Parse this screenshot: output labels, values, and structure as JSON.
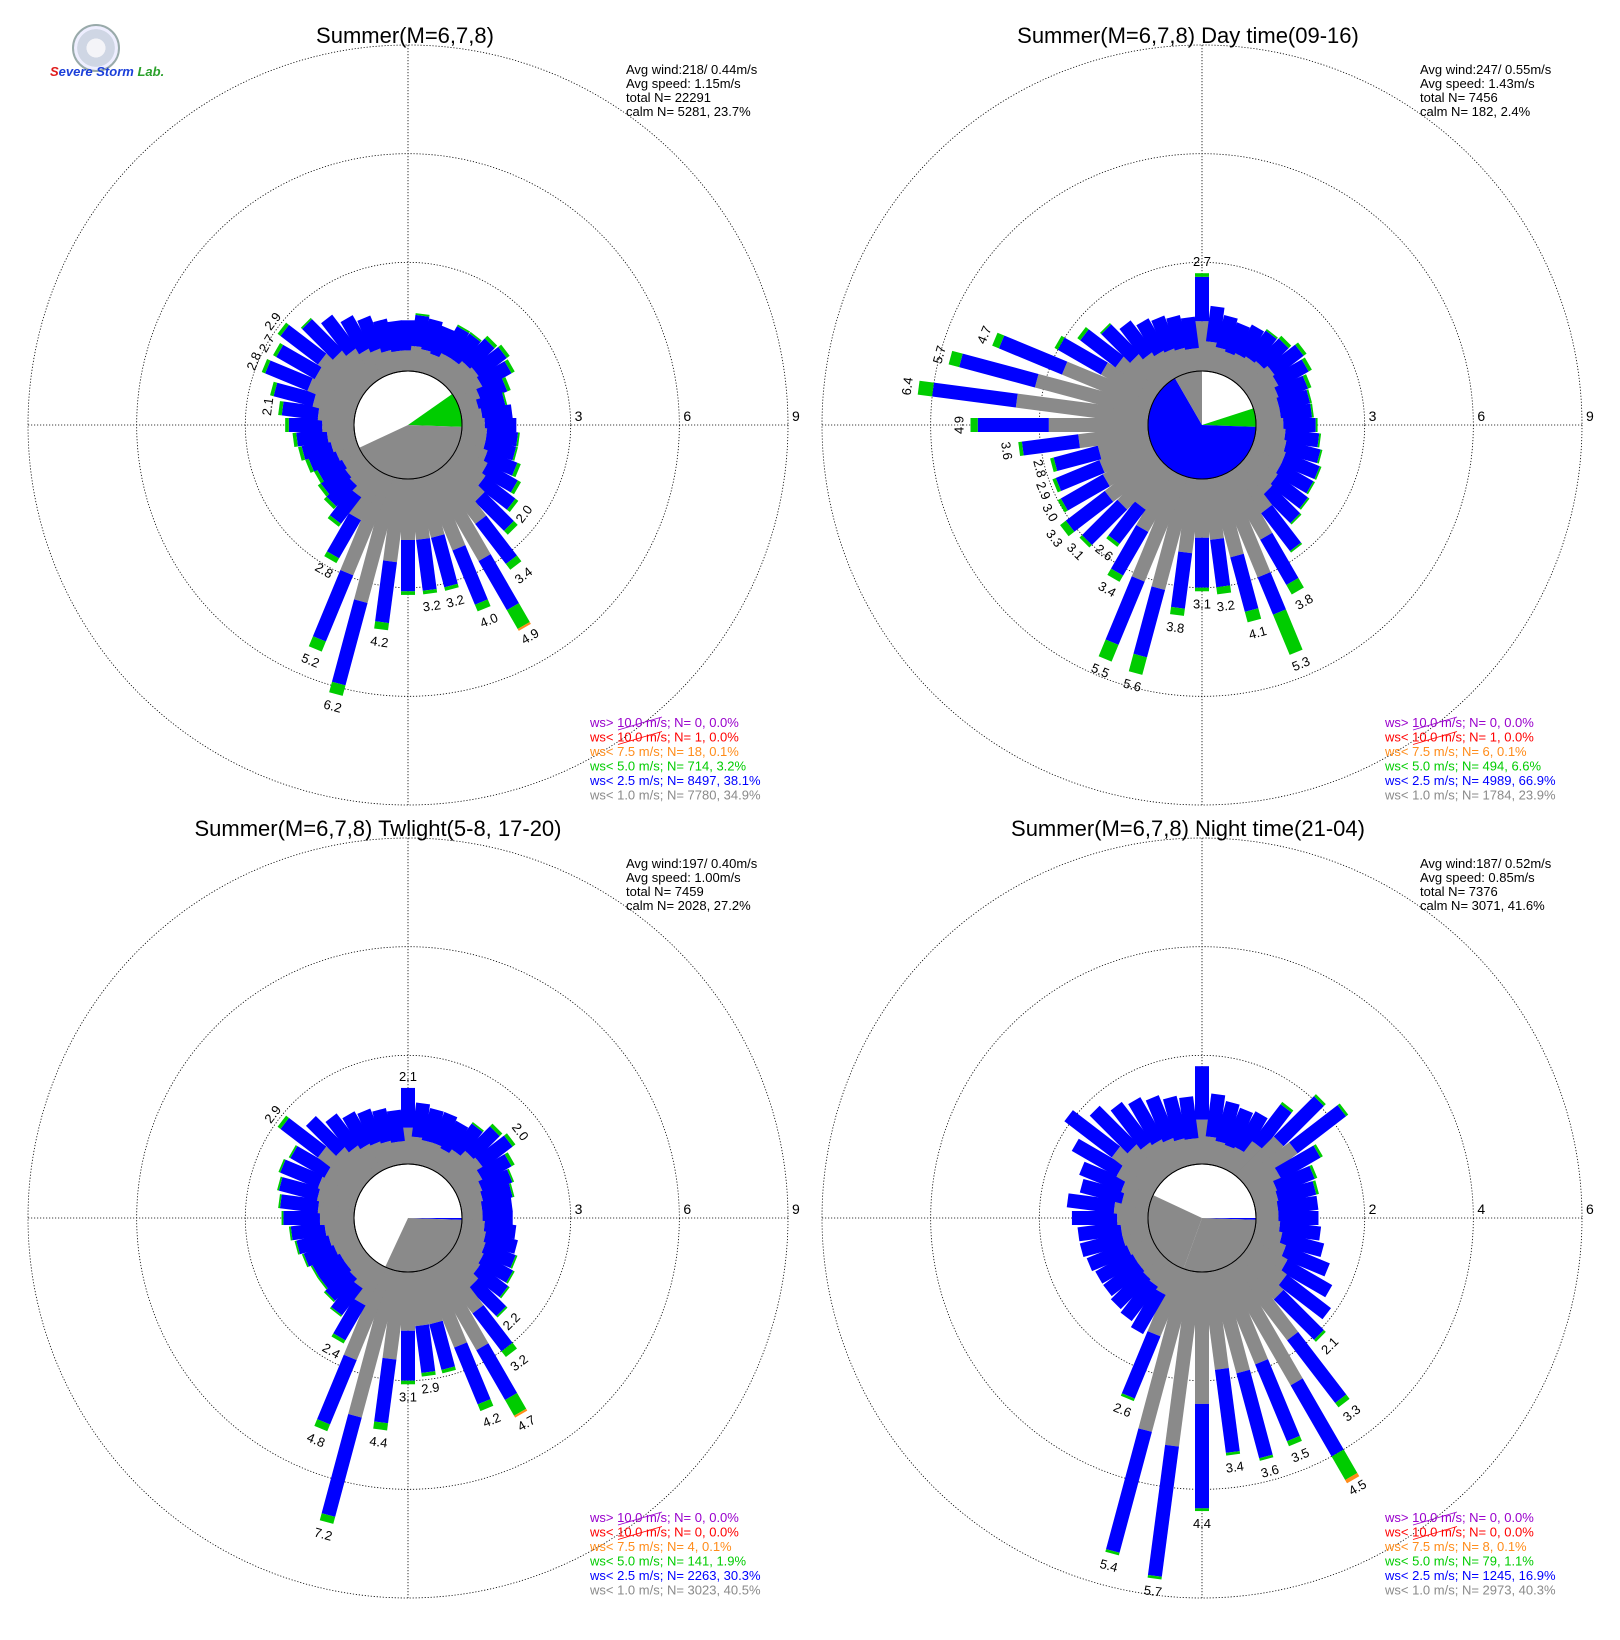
{
  "logo": {
    "text": "Severe Storm Lab."
  },
  "legend_colors": [
    "#8a8a8a",
    "#0000ff",
    "#00cc00",
    "#ff8c1a",
    "#ff0000",
    "#9900cc"
  ],
  "legend_labels": [
    "ws<  1.0 m/s; N=",
    "ws<  2.5 m/s; N=",
    "ws<  5.0 m/s; N=",
    "ws<  7.5 m/s; N=",
    "ws< 10.0 m/s; N=",
    "ws> 10.0 m/s; N="
  ],
  "chart_data": [
    {
      "type": "polar-bar",
      "title": "Summer(M=6,7,8)",
      "ring_labels": [
        "3",
        "6",
        "9"
      ],
      "r_max": 9,
      "stats": {
        "avg_wind": "Avg wind:218/ 0.44m/s",
        "avg_speed": "Avg speed: 1.15m/s",
        "total": "total N=       22291",
        "calm": "calm N=   5281,  23.7%"
      },
      "calm_pie": [
        {
          "deg": 55,
          "color": "#0000ff"
        },
        {
          "deg": 92,
          "color": "#00cc00"
        },
        {
          "deg": 245,
          "color": "#8a8a8a"
        }
      ],
      "bins": [
        [
          1.4,
          0
        ],
        [
          1.6,
          0.05
        ],
        [
          1.5,
          0
        ],
        [
          1.4,
          0
        ],
        [
          1.6,
          0.05
        ],
        [
          1.6,
          0.05
        ],
        [
          1.8,
          0.1
        ],
        [
          1.9,
          0.1
        ],
        [
          1.8,
          0.1
        ],
        [
          1.5,
          0.1
        ],
        [
          1.3,
          0.05
        ],
        [
          1.4,
          0
        ],
        [
          1.5,
          0
        ],
        [
          1.6,
          0.05
        ],
        [
          1.6,
          0.05
        ],
        [
          1.8,
          0.1
        ],
        [
          2.0,
          0.1
        ],
        [
          2.2,
          0.1
        ],
        [
          2.6,
          0.15
        ],
        [
          3.4,
          0.2
        ],
        [
          4.9,
          0.6
        ],
        [
          4.0,
          0.2
        ],
        [
          3.2,
          0.1
        ],
        [
          3.2,
          0.1
        ],
        [
          3.2,
          0.1
        ],
        [
          4.2,
          0.2
        ],
        [
          6.2,
          0.3
        ],
        [
          5.2,
          0.3
        ],
        [
          2.8,
          0.15
        ],
        [
          1.9,
          0.1
        ],
        [
          1.6,
          0.1
        ],
        [
          1.5,
          0.1
        ],
        [
          1.4,
          0.1
        ],
        [
          1.5,
          0.1
        ],
        [
          1.6,
          0.1
        ],
        [
          1.7,
          0.1
        ],
        [
          1.9,
          0.1
        ],
        [
          2.1,
          0.1
        ],
        [
          2.4,
          0.1
        ],
        [
          2.8,
          0.1
        ],
        [
          2.7,
          0.1
        ],
        [
          2.9,
          0.1
        ],
        [
          2.5,
          0.05
        ],
        [
          2.2,
          0
        ],
        [
          1.9,
          0
        ],
        [
          1.7,
          0
        ],
        [
          1.5,
          0
        ],
        [
          1.4,
          0
        ]
      ],
      "bar_labels": [
        {
          "i": 17,
          "t": "2.0"
        },
        {
          "i": 19,
          "t": "3.4"
        },
        {
          "i": 20,
          "t": "4.9"
        },
        {
          "i": 21,
          "t": "4.0"
        },
        {
          "i": 22,
          "t": "3.2"
        },
        {
          "i": 23,
          "t": "3.2"
        },
        {
          "i": 25,
          "t": "4.2"
        },
        {
          "i": 26,
          "t": "6.2"
        },
        {
          "i": 27,
          "t": "5.2"
        },
        {
          "i": 28,
          "t": "2.8"
        },
        {
          "i": 37,
          "t": "2.1"
        },
        {
          "i": 39,
          "t": "2.8"
        },
        {
          "i": 40,
          "t": "2.7"
        },
        {
          "i": 41,
          "t": "2.9"
        }
      ],
      "legend_values": [
        "7780, 34.9%",
        "8497, 38.1%",
        "714,  3.2%",
        "18,  0.1%",
        "1,  0.0%",
        "0,  0.0%"
      ]
    },
    {
      "type": "polar-bar",
      "title": "Summer(M=6,7,8) Day time(09-16)",
      "ring_labels": [
        "3",
        "6",
        "9"
      ],
      "r_max": 9,
      "stats": {
        "avg_wind": "Avg wind:247/ 0.55m/s",
        "avg_speed": "Avg speed: 1.43m/s",
        "total": "total N=        7456",
        "calm": "calm N=    182,   2.4%"
      },
      "calm_pie": [
        {
          "deg": 72,
          "color": "#0000ff"
        },
        {
          "deg": 92,
          "color": "#00cc00"
        },
        {
          "deg": 330,
          "color": "#0000ff"
        },
        {
          "deg": 360,
          "color": "#8a8a8a"
        }
      ],
      "bins": [
        [
          2.7,
          0.1
        ],
        [
          1.8,
          0
        ],
        [
          1.6,
          0
        ],
        [
          1.5,
          0
        ],
        [
          1.6,
          0
        ],
        [
          1.7,
          0.05
        ],
        [
          1.8,
          0.1
        ],
        [
          2.0,
          0.1
        ],
        [
          1.9,
          0.1
        ],
        [
          1.7,
          0.1
        ],
        [
          1.6,
          0.05
        ],
        [
          1.6,
          0.05
        ],
        [
          1.7,
          0.05
        ],
        [
          1.8,
          0.05
        ],
        [
          1.9,
          0.05
        ],
        [
          2.0,
          0.05
        ],
        [
          2.0,
          0.05
        ],
        [
          2.1,
          0.05
        ],
        [
          2.2,
          0.05
        ],
        [
          2.8,
          0.05
        ],
        [
          3.8,
          0.3
        ],
        [
          5.3,
          1.2
        ],
        [
          4.1,
          0.3
        ],
        [
          3.2,
          0.2
        ],
        [
          3.1,
          0.1
        ],
        [
          3.8,
          0.2
        ],
        [
          5.6,
          0.5
        ],
        [
          5.5,
          0.5
        ],
        [
          3.4,
          0.2
        ],
        [
          2.6,
          0.1
        ],
        [
          3.1,
          0.1
        ],
        [
          3.3,
          0.2
        ],
        [
          3.0,
          0.1
        ],
        [
          2.9,
          0.1
        ],
        [
          2.8,
          0.1
        ],
        [
          3.6,
          0.1
        ],
        [
          4.9,
          0.2
        ],
        [
          6.4,
          0.4
        ],
        [
          5.7,
          0.3
        ],
        [
          4.7,
          0.2
        ],
        [
          3.1,
          0.1
        ],
        [
          2.7,
          0.1
        ],
        [
          2.3,
          0.05
        ],
        [
          2.0,
          0
        ],
        [
          1.8,
          0
        ],
        [
          1.7,
          0
        ],
        [
          1.6,
          0
        ],
        [
          1.5,
          0
        ]
      ],
      "bar_labels": [
        {
          "i": 0,
          "t": "2.7"
        },
        {
          "i": 20,
          "t": "3.8"
        },
        {
          "i": 21,
          "t": "5.3"
        },
        {
          "i": 22,
          "t": "4.1"
        },
        {
          "i": 23,
          "t": "3.2"
        },
        {
          "i": 24,
          "t": "3.1"
        },
        {
          "i": 25,
          "t": "3.8"
        },
        {
          "i": 26,
          "t": "5.6"
        },
        {
          "i": 27,
          "t": "5.5"
        },
        {
          "i": 28,
          "t": "3.4"
        },
        {
          "i": 29,
          "t": "2.6"
        },
        {
          "i": 30,
          "t": "3.1"
        },
        {
          "i": 31,
          "t": "3.3"
        },
        {
          "i": 32,
          "t": "3.0"
        },
        {
          "i": 33,
          "t": "2.9"
        },
        {
          "i": 34,
          "t": "2.8"
        },
        {
          "i": 35,
          "t": "3.6"
        },
        {
          "i": 36,
          "t": "4.9"
        },
        {
          "i": 37,
          "t": "6.4"
        },
        {
          "i": 38,
          "t": "5.7"
        },
        {
          "i": 39,
          "t": "4.7"
        }
      ],
      "legend_values": [
        "1784, 23.9%",
        "4989, 66.9%",
        "494,  6.6%",
        "6,  0.1%",
        "1,  0.0%",
        "0,  0.0%"
      ]
    },
    {
      "type": "polar-bar",
      "title": "Summer(M=6,7,8) Twlight(5-8, 17-20)",
      "ring_labels": [
        "3",
        "6",
        "9"
      ],
      "r_max": 9,
      "stats": {
        "avg_wind": "Avg wind:197/ 0.40m/s",
        "avg_speed": "Avg speed: 1.00m/s",
        "total": "total N=        7459",
        "calm": "calm N=   2028,  27.2%"
      },
      "calm_pie": [
        {
          "deg": 90,
          "color": "#00cc00"
        },
        {
          "deg": 92,
          "color": "#0000ff"
        },
        {
          "deg": 205,
          "color": "#8a8a8a"
        }
      ],
      "bins": [
        [
          2.1,
          0
        ],
        [
          1.7,
          0
        ],
        [
          1.6,
          0
        ],
        [
          1.6,
          0
        ],
        [
          1.5,
          0
        ],
        [
          1.7,
          0.05
        ],
        [
          2.0,
          0.1
        ],
        [
          2.1,
          0.1
        ],
        [
          1.8,
          0.1
        ],
        [
          1.6,
          0.05
        ],
        [
          1.5,
          0.05
        ],
        [
          1.4,
          0
        ],
        [
          1.4,
          0
        ],
        [
          1.5,
          0
        ],
        [
          1.6,
          0
        ],
        [
          1.7,
          0.05
        ],
        [
          1.8,
          0.05
        ],
        [
          1.9,
          0.05
        ],
        [
          2.2,
          0.05
        ],
        [
          3.2,
          0.2
        ],
        [
          4.7,
          0.5
        ],
        [
          4.2,
          0.2
        ],
        [
          2.9,
          0.1
        ],
        [
          2.9,
          0.1
        ],
        [
          3.1,
          0.1
        ],
        [
          4.4,
          0.2
        ],
        [
          7.2,
          0.2
        ],
        [
          4.8,
          0.2
        ],
        [
          2.4,
          0.1
        ],
        [
          1.8,
          0.05
        ],
        [
          1.6,
          0.05
        ],
        [
          1.5,
          0.05
        ],
        [
          1.5,
          0.05
        ],
        [
          1.6,
          0.05
        ],
        [
          1.7,
          0.05
        ],
        [
          1.8,
          0.05
        ],
        [
          2.0,
          0.05
        ],
        [
          2.1,
          0.05
        ],
        [
          2.2,
          0.05
        ],
        [
          2.3,
          0.05
        ],
        [
          2.2,
          0.05
        ],
        [
          2.9,
          0.1
        ],
        [
          2.3,
          0
        ],
        [
          2.0,
          0
        ],
        [
          1.8,
          0
        ],
        [
          1.7,
          0
        ],
        [
          1.6,
          0
        ],
        [
          1.5,
          0
        ]
      ],
      "bar_labels": [
        {
          "i": 0,
          "t": "2.1"
        },
        {
          "i": 7,
          "t": "2.0"
        },
        {
          "i": 18,
          "t": "2.2"
        },
        {
          "i": 19,
          "t": "3.2"
        },
        {
          "i": 20,
          "t": "4.7"
        },
        {
          "i": 21,
          "t": "4.2"
        },
        {
          "i": 23,
          "t": "2.9"
        },
        {
          "i": 24,
          "t": "3.1"
        },
        {
          "i": 25,
          "t": "4.4"
        },
        {
          "i": 26,
          "t": "7.2"
        },
        {
          "i": 27,
          "t": "4.8"
        },
        {
          "i": 28,
          "t": "2.4"
        },
        {
          "i": 41,
          "t": "2.9"
        }
      ],
      "legend_values": [
        "3023, 40.5%",
        "2263, 30.3%",
        "141,  1.9%",
        "4,  0.1%",
        "0,  0.0%",
        "0,  0.0%"
      ]
    },
    {
      "type": "polar-bar",
      "title": "Summer(M=6,7,8) Night time(21-04)",
      "ring_labels": [
        "2",
        "4",
        "6"
      ],
      "r_max": 6,
      "stats": {
        "avg_wind": "Avg wind:187/ 0.52m/s",
        "avg_speed": "Avg speed: 0.85m/s",
        "total": "total N=        7376",
        "calm": "calm N=   3071,  41.6%"
      },
      "calm_pie": [
        {
          "deg": 90,
          "color": "#00cc00"
        },
        {
          "deg": 92,
          "color": "#0000ff"
        },
        {
          "deg": 200,
          "color": "#8a8a8a"
        },
        {
          "deg": 295,
          "color": "#8a8a8a"
        }
      ],
      "bins": [
        [
          1.8,
          0
        ],
        [
          1.3,
          0
        ],
        [
          1.2,
          0
        ],
        [
          1.15,
          0
        ],
        [
          1.2,
          0
        ],
        [
          1.6,
          0.05
        ],
        [
          2.1,
          0.05
        ],
        [
          2.3,
          0.05
        ],
        [
          1.5,
          0.05
        ],
        [
          1.25,
          0.05
        ],
        [
          1.2,
          0.05
        ],
        [
          1.15,
          0
        ],
        [
          1.15,
          0
        ],
        [
          1.2,
          0
        ],
        [
          1.3,
          0
        ],
        [
          1.5,
          0
        ],
        [
          1.7,
          0
        ],
        [
          1.9,
          0
        ],
        [
          2.1,
          0.05
        ],
        [
          3.3,
          0.1
        ],
        [
          4.5,
          0.5
        ],
        [
          3.5,
          0.1
        ],
        [
          3.6,
          0.05
        ],
        [
          3.4,
          0.05
        ],
        [
          4.4,
          0.05
        ],
        [
          5.7,
          0.05
        ],
        [
          5.4,
          0.05
        ],
        [
          2.6,
          0.05
        ],
        [
          1.4,
          0
        ],
        [
          1.3,
          0
        ],
        [
          1.25,
          0
        ],
        [
          1.2,
          0
        ],
        [
          1.2,
          0
        ],
        [
          1.25,
          0
        ],
        [
          1.3,
          0
        ],
        [
          1.3,
          0
        ],
        [
          1.4,
          0
        ],
        [
          1.5,
          0
        ],
        [
          1.3,
          0
        ],
        [
          1.4,
          0
        ],
        [
          1.7,
          0
        ],
        [
          2.1,
          0
        ],
        [
          1.8,
          0
        ],
        [
          1.6,
          0
        ],
        [
          1.5,
          0
        ],
        [
          1.4,
          0
        ],
        [
          1.3,
          0
        ],
        [
          1.25,
          0
        ]
      ],
      "bar_labels": [
        {
          "i": 18,
          "t": "2.1"
        },
        {
          "i": 19,
          "t": "3.3"
        },
        {
          "i": 20,
          "t": "4.5"
        },
        {
          "i": 21,
          "t": "3.5"
        },
        {
          "i": 22,
          "t": "3.6"
        },
        {
          "i": 23,
          "t": "3.4"
        },
        {
          "i": 24,
          "t": "4.4"
        },
        {
          "i": 25,
          "t": "5.7"
        },
        {
          "i": 26,
          "t": "5.4"
        },
        {
          "i": 27,
          "t": "2.6"
        }
      ],
      "legend_values": [
        "2973, 40.3%",
        "1245, 16.9%",
        "79,  1.1%",
        "8,  0.1%",
        "0,  0.0%",
        "0,  0.0%"
      ]
    }
  ]
}
